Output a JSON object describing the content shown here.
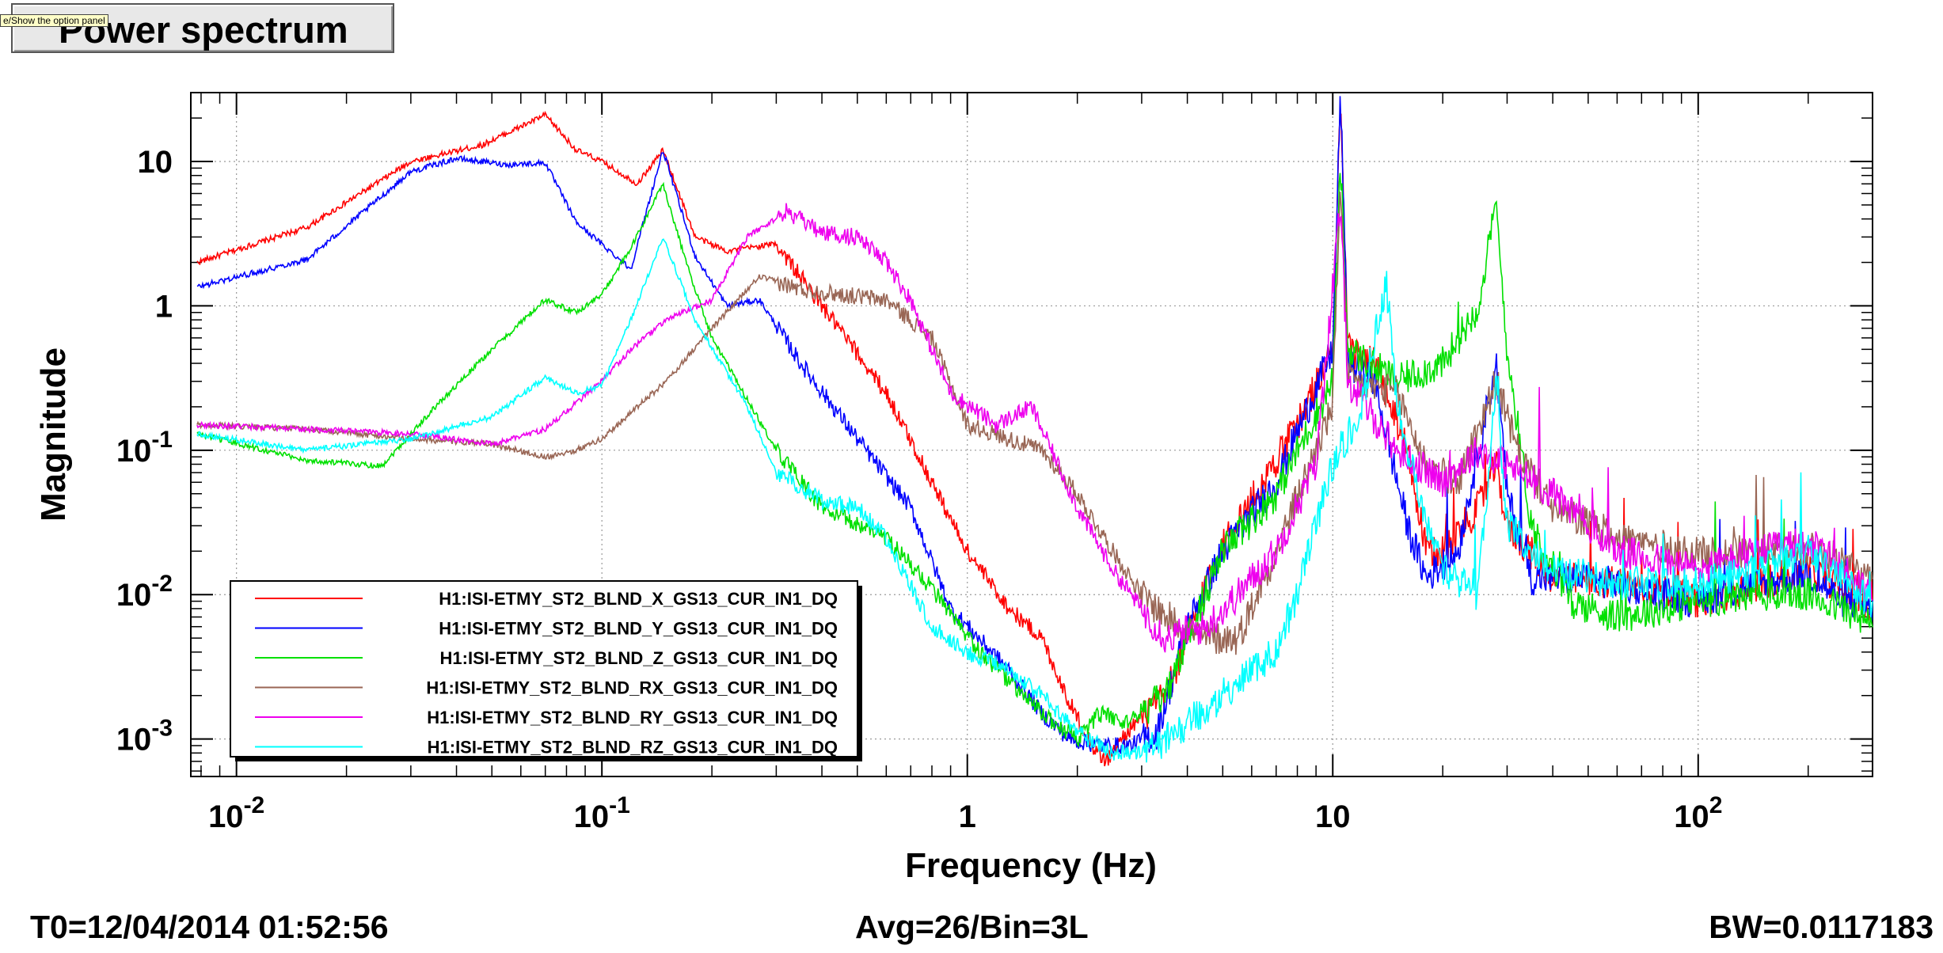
{
  "header": {
    "title_button": "Power spectrum",
    "tooltip": "e/Show the option panel"
  },
  "footer": {
    "t0": "T0=12/04/2014 01:52:56",
    "avg": "Avg=26/Bin=3L",
    "bw": "BW=0.0117183"
  },
  "colors": {
    "X": "#ff0000",
    "Y": "#0000ff",
    "Z": "#00e000",
    "RX": "#996655",
    "RY": "#ee00ee",
    "RZ": "#00ffff"
  },
  "chart_data": {
    "type": "line",
    "xscale": "log",
    "yscale": "log",
    "xlim": [
      0.0075,
      300
    ],
    "ylim": [
      0.00055,
      30
    ],
    "xlabel": "Frequency (Hz)",
    "ylabel": "Magnitude",
    "x_ticks": [
      {
        "v": 0.01,
        "base": "10",
        "exp": "-2"
      },
      {
        "v": 0.1,
        "base": "10",
        "exp": "-1"
      },
      {
        "v": 1,
        "base": "1",
        "exp": ""
      },
      {
        "v": 10,
        "base": "10",
        "exp": ""
      },
      {
        "v": 100,
        "base": "10",
        "exp": "2"
      }
    ],
    "y_ticks": [
      {
        "v": 10,
        "base": "10",
        "exp": ""
      },
      {
        "v": 1,
        "base": "1",
        "exp": ""
      },
      {
        "v": 0.1,
        "base": "10",
        "exp": "-1"
      },
      {
        "v": 0.01,
        "base": "10",
        "exp": "-2"
      },
      {
        "v": 0.001,
        "base": "10",
        "exp": "-3"
      }
    ],
    "grid": true,
    "legend_position": "bottom-left",
    "series": [
      {
        "name": "H1:ISI-ETMY_ST2_BLND_X_GS13_CUR_IN1_DQ",
        "color": "#ff0000",
        "points": [
          [
            0.0078,
            2.0
          ],
          [
            0.0156,
            3.5
          ],
          [
            0.03,
            10
          ],
          [
            0.047,
            13
          ],
          [
            0.07,
            21
          ],
          [
            0.085,
            12
          ],
          [
            0.1,
            10
          ],
          [
            0.125,
            7
          ],
          [
            0.147,
            12
          ],
          [
            0.18,
            3
          ],
          [
            0.22,
            2.4
          ],
          [
            0.3,
            2.7
          ],
          [
            0.4,
            1
          ],
          [
            0.6,
            0.25
          ],
          [
            0.8,
            0.06
          ],
          [
            1,
            0.02
          ],
          [
            1.3,
            0.008
          ],
          [
            1.6,
            0.005
          ],
          [
            1.9,
            0.0018
          ],
          [
            2.2,
            0.0009
          ],
          [
            2.4,
            0.0007
          ],
          [
            2.8,
            0.0012
          ],
          [
            3.5,
            0.002
          ],
          [
            4,
            0.005
          ],
          [
            4.5,
            0.012
          ],
          [
            5,
            0.022
          ],
          [
            6,
            0.045
          ],
          [
            8,
            0.15
          ],
          [
            10,
            0.5
          ],
          [
            10.5,
            25
          ],
          [
            11,
            0.5
          ],
          [
            13,
            0.4
          ],
          [
            16,
            0.1
          ],
          [
            18,
            0.02
          ],
          [
            20,
            0.02
          ],
          [
            25,
            0.04
          ],
          [
            28,
            0.08
          ],
          [
            30,
            0.03
          ],
          [
            40,
            0.013
          ],
          [
            60,
            0.012
          ],
          [
            80,
            0.011
          ],
          [
            100,
            0.009
          ],
          [
            150,
            0.012
          ],
          [
            200,
            0.015
          ],
          [
            250,
            0.011
          ],
          [
            300,
            0.0075
          ]
        ]
      },
      {
        "name": "H1:ISI-ETMY_ST2_BLND_Y_GS13_CUR_IN1_DQ",
        "color": "#0000ff",
        "points": [
          [
            0.0078,
            1.35
          ],
          [
            0.0156,
            2.1
          ],
          [
            0.03,
            8.5
          ],
          [
            0.04,
            10.5
          ],
          [
            0.055,
            9.5
          ],
          [
            0.07,
            9.8
          ],
          [
            0.085,
            3.8
          ],
          [
            0.12,
            1.8
          ],
          [
            0.147,
            12
          ],
          [
            0.18,
            2.2
          ],
          [
            0.22,
            1.0
          ],
          [
            0.27,
            1.1
          ],
          [
            0.35,
            0.4
          ],
          [
            0.5,
            0.12
          ],
          [
            0.7,
            0.04
          ],
          [
            0.9,
            0.008
          ],
          [
            1.3,
            0.003
          ],
          [
            1.6,
            0.0015
          ],
          [
            1.9,
            0.001
          ],
          [
            2.3,
            0.0009
          ],
          [
            2.8,
            0.0009
          ],
          [
            3.3,
            0.0011
          ],
          [
            3.7,
            0.003
          ],
          [
            4,
            0.006
          ],
          [
            5,
            0.02
          ],
          [
            7,
            0.06
          ],
          [
            10,
            0.5
          ],
          [
            10.5,
            30
          ],
          [
            11,
            0.4
          ],
          [
            13,
            0.3
          ],
          [
            16,
            0.03
          ],
          [
            18,
            0.013
          ],
          [
            22,
            0.02
          ],
          [
            28,
            0.4
          ],
          [
            30,
            0.05
          ],
          [
            35,
            0.013
          ],
          [
            50,
            0.013
          ],
          [
            80,
            0.01
          ],
          [
            100,
            0.009
          ],
          [
            150,
            0.012
          ],
          [
            200,
            0.014
          ],
          [
            250,
            0.009
          ],
          [
            300,
            0.0075
          ]
        ]
      },
      {
        "name": "H1:ISI-ETMY_ST2_BLND_Z_GS13_CUR_IN1_DQ",
        "color": "#00e000",
        "points": [
          [
            0.0078,
            0.13
          ],
          [
            0.0156,
            0.085
          ],
          [
            0.025,
            0.078
          ],
          [
            0.035,
            0.2
          ],
          [
            0.05,
            0.5
          ],
          [
            0.07,
            1.1
          ],
          [
            0.085,
            0.9
          ],
          [
            0.1,
            1.2
          ],
          [
            0.12,
            2.5
          ],
          [
            0.147,
            7
          ],
          [
            0.17,
            2
          ],
          [
            0.2,
            0.6
          ],
          [
            0.3,
            0.1
          ],
          [
            0.4,
            0.04
          ],
          [
            0.6,
            0.025
          ],
          [
            0.8,
            0.011
          ],
          [
            1,
            0.005
          ],
          [
            1.3,
            0.0025
          ],
          [
            1.6,
            0.0015
          ],
          [
            2,
            0.001
          ],
          [
            2.3,
            0.0015
          ],
          [
            2.7,
            0.0013
          ],
          [
            3.5,
            0.002
          ],
          [
            4,
            0.005
          ],
          [
            5,
            0.02
          ],
          [
            7,
            0.05
          ],
          [
            10,
            0.3
          ],
          [
            10.5,
            10
          ],
          [
            11,
            0.5
          ],
          [
            15,
            0.3
          ],
          [
            20,
            0.4
          ],
          [
            25,
            1.0
          ],
          [
            28,
            5
          ],
          [
            30,
            0.5
          ],
          [
            35,
            0.03
          ],
          [
            45,
            0.009
          ],
          [
            60,
            0.007
          ],
          [
            80,
            0.008
          ],
          [
            100,
            0.009
          ],
          [
            150,
            0.01
          ],
          [
            200,
            0.01
          ],
          [
            250,
            0.008
          ],
          [
            300,
            0.006
          ]
        ]
      },
      {
        "name": "H1:ISI-ETMY_ST2_BLND_RX_GS13_CUR_IN1_DQ",
        "color": "#996655",
        "points": [
          [
            0.0078,
            0.15
          ],
          [
            0.0156,
            0.14
          ],
          [
            0.03,
            0.12
          ],
          [
            0.05,
            0.11
          ],
          [
            0.07,
            0.09
          ],
          [
            0.085,
            0.1
          ],
          [
            0.1,
            0.12
          ],
          [
            0.125,
            0.2
          ],
          [
            0.15,
            0.3
          ],
          [
            0.2,
            0.7
          ],
          [
            0.27,
            1.6
          ],
          [
            0.35,
            1.3
          ],
          [
            0.45,
            1.2
          ],
          [
            0.6,
            1.1
          ],
          [
            0.8,
            0.6
          ],
          [
            1,
            0.15
          ],
          [
            1.3,
            0.12
          ],
          [
            1.6,
            0.1
          ],
          [
            2,
            0.05
          ],
          [
            2.5,
            0.02
          ],
          [
            3,
            0.01
          ],
          [
            3.5,
            0.007
          ],
          [
            4.5,
            0.005
          ],
          [
            5.5,
            0.005
          ],
          [
            7,
            0.02
          ],
          [
            10,
            0.2
          ],
          [
            10.5,
            8
          ],
          [
            11,
            0.3
          ],
          [
            15,
            0.25
          ],
          [
            18,
            0.08
          ],
          [
            22,
            0.06
          ],
          [
            28,
            0.3
          ],
          [
            32,
            0.1
          ],
          [
            40,
            0.04
          ],
          [
            60,
            0.025
          ],
          [
            100,
            0.019
          ],
          [
            150,
            0.02
          ],
          [
            200,
            0.021
          ],
          [
            250,
            0.017
          ],
          [
            300,
            0.012
          ]
        ]
      },
      {
        "name": "H1:ISI-ETMY_ST2_BLND_RY_GS13_CUR_IN1_DQ",
        "color": "#ee00ee",
        "points": [
          [
            0.0078,
            0.15
          ],
          [
            0.0156,
            0.14
          ],
          [
            0.03,
            0.13
          ],
          [
            0.05,
            0.11
          ],
          [
            0.07,
            0.14
          ],
          [
            0.1,
            0.3
          ],
          [
            0.12,
            0.5
          ],
          [
            0.15,
            0.8
          ],
          [
            0.2,
            1.1
          ],
          [
            0.25,
            3
          ],
          [
            0.32,
            4.5
          ],
          [
            0.4,
            3.2
          ],
          [
            0.5,
            3
          ],
          [
            0.6,
            2
          ],
          [
            0.7,
            1.1
          ],
          [
            0.9,
            0.25
          ],
          [
            1.2,
            0.15
          ],
          [
            1.5,
            0.2
          ],
          [
            1.7,
            0.1
          ],
          [
            2,
            0.04
          ],
          [
            2.5,
            0.015
          ],
          [
            3,
            0.008
          ],
          [
            3.5,
            0.005
          ],
          [
            4.5,
            0.006
          ],
          [
            5.5,
            0.01
          ],
          [
            7,
            0.02
          ],
          [
            9,
            0.08
          ],
          [
            10.5,
            5
          ],
          [
            11,
            0.3
          ],
          [
            15,
            0.1
          ],
          [
            20,
            0.06
          ],
          [
            25,
            0.1
          ],
          [
            30,
            0.08
          ],
          [
            40,
            0.05
          ],
          [
            60,
            0.02
          ],
          [
            100,
            0.015
          ],
          [
            150,
            0.02
          ],
          [
            200,
            0.023
          ],
          [
            250,
            0.015
          ],
          [
            300,
            0.01
          ]
        ]
      },
      {
        "name": "H1:ISI-ETMY_ST2_BLND_RZ_GS13_CUR_IN1_DQ",
        "color": "#00ffff",
        "points": [
          [
            0.0078,
            0.13
          ],
          [
            0.0156,
            0.1
          ],
          [
            0.03,
            0.12
          ],
          [
            0.05,
            0.17
          ],
          [
            0.07,
            0.32
          ],
          [
            0.085,
            0.25
          ],
          [
            0.1,
            0.28
          ],
          [
            0.12,
            0.8
          ],
          [
            0.147,
            3
          ],
          [
            0.18,
            0.8
          ],
          [
            0.25,
            0.2
          ],
          [
            0.3,
            0.07
          ],
          [
            0.4,
            0.045
          ],
          [
            0.5,
            0.04
          ],
          [
            0.6,
            0.025
          ],
          [
            0.8,
            0.006
          ],
          [
            1,
            0.004
          ],
          [
            1.3,
            0.003
          ],
          [
            1.6,
            0.002
          ],
          [
            2,
            0.0011
          ],
          [
            2.5,
            0.0008
          ],
          [
            3,
            0.0008
          ],
          [
            3.5,
            0.001
          ],
          [
            4,
            0.0013
          ],
          [
            5,
            0.002
          ],
          [
            7,
            0.004
          ],
          [
            8,
            0.01
          ],
          [
            10,
            0.08
          ],
          [
            12,
            0.2
          ],
          [
            14,
            1.5
          ],
          [
            15,
            0.2
          ],
          [
            18,
            0.03
          ],
          [
            20,
            0.015
          ],
          [
            25,
            0.01
          ],
          [
            28,
            0.3
          ],
          [
            30,
            0.03
          ],
          [
            40,
            0.015
          ],
          [
            60,
            0.012
          ],
          [
            100,
            0.012
          ],
          [
            150,
            0.015
          ],
          [
            200,
            0.02
          ],
          [
            250,
            0.013
          ],
          [
            300,
            0.0085
          ]
        ]
      }
    ]
  }
}
